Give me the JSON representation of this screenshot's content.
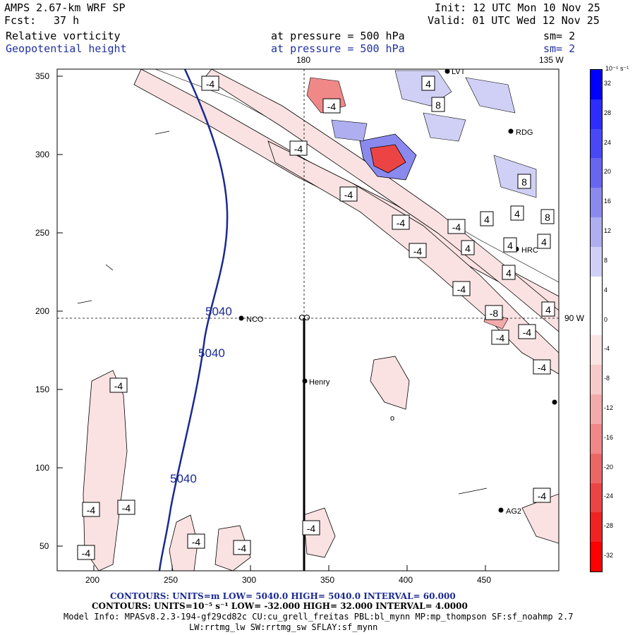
{
  "header": {
    "model": "AMPS 2.67-km WRF SP",
    "forecast_label": "Fcst:",
    "forecast_hours": "37 h",
    "init": "Init: 12 UTC Mon 10 Nov 25",
    "valid": "Valid: 01 UTC Wed 12 Nov 25",
    "field1": {
      "name": "Relative vorticity",
      "level": "at pressure =  500 hPa",
      "smooth": "sm= 2"
    },
    "field2": {
      "name": "Geopotential height",
      "level": "at pressure =  500 hPa",
      "smooth": "sm= 2"
    }
  },
  "map": {
    "x_ticks": [
      "200",
      "250",
      "300",
      "350",
      "400",
      "450"
    ],
    "y_ticks": [
      "350",
      "300",
      "250",
      "200",
      "150",
      "100",
      "50"
    ],
    "meridians": {
      "lon180": "180",
      "lon135w": "135 W",
      "lon90w": "90 W"
    },
    "stations": [
      "LVT",
      "RDG",
      "HRC",
      "NCO",
      "Henry",
      "AG2"
    ],
    "height_label": "5040",
    "vort_labels": {
      "neg": "-4",
      "neg8": "-8",
      "pos4": "4",
      "pos8": "8"
    },
    "small_o": "o"
  },
  "colorbar": {
    "unit": "10⁻⁵ s⁻¹",
    "labels": [
      "32",
      "28",
      "24",
      "20",
      "16",
      "12",
      "8",
      "4",
      "0",
      "-4",
      "-8",
      "-12",
      "-16",
      "-20",
      "-24",
      "-28",
      "-32"
    ],
    "colors": [
      "#0000ff",
      "#2d2dff",
      "#4848f8",
      "#6666f0",
      "#8a8aee",
      "#aeaef0",
      "#d0d0f6",
      "#ffffff",
      "#ffffff",
      "#fbe4e4",
      "#f7caca",
      "#f3aaaa",
      "#f08888",
      "#ec6666",
      "#ec4444",
      "#f02222",
      "#ff0000"
    ]
  },
  "footer": {
    "line1": "CONTOURS:  UNITS=m  LOW=  5040.0          HIGH=  5040.0          INTERVAL=   60.000",
    "line2": "CONTOURS:  UNITS=10⁻⁵ s⁻¹  LOW= -32.000         HIGH=  32.000         INTERVAL=   4.0000",
    "line3": "Model Info: MPASv8.2.3-194-gf29cd82c CU:cu_grell_freitas PBL:bl_mynn MP:mp_thompson SF:sf_noahmp 2.7",
    "line4": "LW:rrtmg_lw SW:rrtmg_sw SFLAY:sf_mynn"
  }
}
